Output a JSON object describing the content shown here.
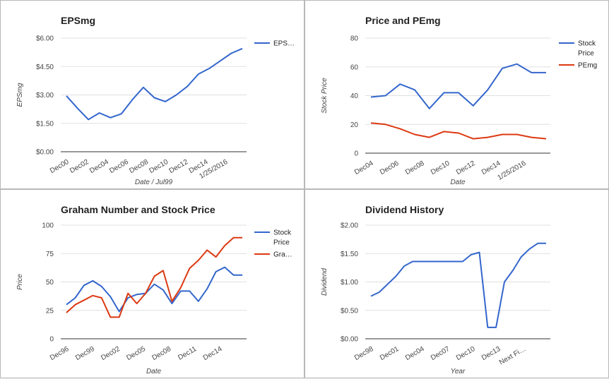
{
  "charts": [
    {
      "type": "line",
      "title": "EPSmg",
      "xlabel": "Date / Jul99",
      "ylabel": "EPSmg",
      "ylim": [
        0,
        6
      ],
      "yticks": [
        "$0.00",
        "$1.50",
        "$3.00",
        "$4.50",
        "$6.00"
      ],
      "ytick_values": [
        0,
        1.5,
        3,
        4.5,
        6
      ],
      "xticks": [
        "Dec00",
        "Dec02",
        "Dec04",
        "Dec06",
        "Dec08",
        "Dec10",
        "Dec12",
        "Dec14",
        "1/25/2016"
      ],
      "legend": [
        {
          "label": "EPS…",
          "color": "#3366cc"
        }
      ],
      "series": [
        {
          "name": "EPS…",
          "color": "#3366cc",
          "values": [
            2.95,
            2.3,
            1.7,
            2.05,
            1.8,
            2.0,
            2.75,
            3.4,
            2.85,
            2.65,
            3.0,
            3.45,
            4.1,
            4.4,
            4.8,
            5.2,
            5.45
          ]
        }
      ]
    },
    {
      "type": "line",
      "title": "Price and PEmg",
      "xlabel": "Date",
      "ylabel": "Stock Price",
      "ylim": [
        0,
        80
      ],
      "yticks": [
        "0",
        "20",
        "40",
        "60",
        "80"
      ],
      "ytick_values": [
        0,
        20,
        40,
        60,
        80
      ],
      "xticks": [
        "Dec04",
        "Dec06",
        "Dec08",
        "Dec10",
        "Dec12",
        "Dec14",
        "1/25/2016"
      ],
      "legend": [
        {
          "label": "Stock",
          "label2": "Price",
          "color": "#3366cc"
        },
        {
          "label": "PEmg",
          "label2": "",
          "color": "#dc3912"
        }
      ],
      "series": [
        {
          "name": "Stock Price",
          "color": "#3366cc",
          "values": [
            39,
            40,
            48,
            44,
            31,
            42,
            42,
            33,
            44,
            59,
            62,
            56,
            56
          ]
        },
        {
          "name": "PEmg",
          "color": "#dc3912",
          "values": [
            21,
            20,
            17,
            13,
            11,
            15,
            14,
            10,
            11,
            13,
            13,
            11,
            10
          ]
        }
      ]
    },
    {
      "type": "line",
      "title": "Graham Number and Stock Price",
      "xlabel": "Date",
      "ylabel": "Price",
      "ylim": [
        0,
        100
      ],
      "yticks": [
        "0",
        "25",
        "50",
        "75",
        "100"
      ],
      "ytick_values": [
        0,
        25,
        50,
        75,
        100
      ],
      "xticks": [
        "Dec96",
        "Dec99",
        "Dec02",
        "Dec05",
        "Dec08",
        "Dec11",
        "Dec14"
      ],
      "legend": [
        {
          "label": "Stock",
          "label2": "Price",
          "color": "#3366cc"
        },
        {
          "label": "Gra…",
          "label2": "",
          "color": "#dc3912"
        }
      ],
      "series": [
        {
          "name": "Stock Price",
          "color": "#3366cc",
          "values": [
            30,
            36,
            47,
            51,
            46,
            37,
            24,
            36,
            39,
            40,
            48,
            43,
            31,
            42,
            42,
            33,
            44,
            59,
            63,
            56,
            56
          ]
        },
        {
          "name": "Gra…",
          "color": "#dc3912",
          "values": [
            23,
            30,
            34,
            38,
            36,
            19,
            19,
            40,
            31,
            40,
            55,
            60,
            33,
            45,
            62,
            69,
            78,
            72,
            82,
            89,
            89
          ]
        }
      ]
    },
    {
      "type": "line",
      "title": "Dividend History",
      "xlabel": "Year",
      "ylabel": "Dividend",
      "ylim": [
        0,
        2
      ],
      "yticks": [
        "$0.00",
        "$0.50",
        "$1.00",
        "$1.50",
        "$2.00"
      ],
      "ytick_values": [
        0,
        0.5,
        1,
        1.5,
        2
      ],
      "xticks": [
        "Dec98",
        "Dec01",
        "Dec04",
        "Dec07",
        "Dec10",
        "Dec13",
        "Next Fi…"
      ],
      "legend": [],
      "series": [
        {
          "name": "",
          "color": "#3366cc",
          "values": [
            0.75,
            0.82,
            0.96,
            1.1,
            1.28,
            1.36,
            1.36,
            1.36,
            1.36,
            1.36,
            1.36,
            1.36,
            1.48,
            1.52,
            0.2,
            0.2,
            1.0,
            1.2,
            1.44,
            1.58,
            1.68,
            1.68
          ]
        }
      ]
    }
  ]
}
